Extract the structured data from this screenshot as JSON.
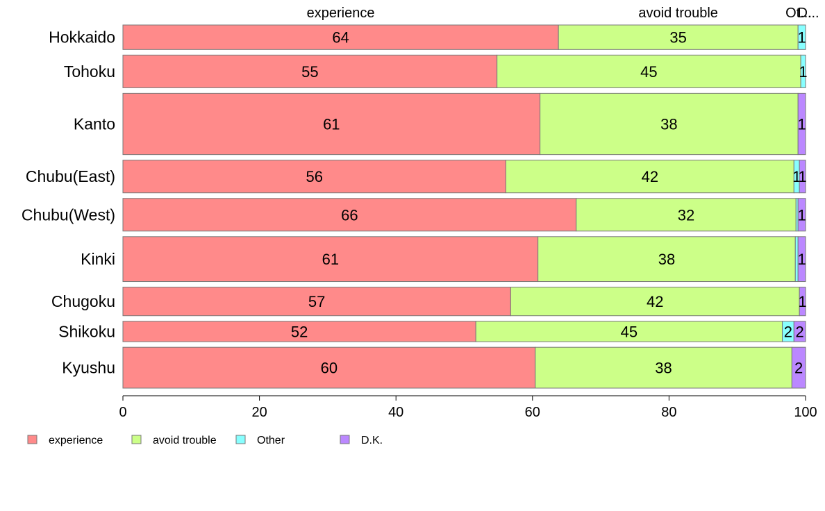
{
  "chart_data": {
    "type": "bar",
    "orientation": "horizontal",
    "stacked": true,
    "percent_stacked": true,
    "categories": [
      "Hokkaido",
      "Tohoku",
      "Kanto",
      "Chubu(East)",
      "Chubu(West)",
      "Kinki",
      "Chugoku",
      "Shikoku",
      "Kyushu"
    ],
    "series": [
      {
        "name": "experience",
        "color": "#ff8a8a",
        "values": [
          63.8,
          54.8,
          61.1,
          56.1,
          66.4,
          60.8,
          56.8,
          51.7,
          60.4
        ]
      },
      {
        "name": "avoid trouble",
        "color": "#ccff88",
        "values": [
          35.1,
          44.5,
          37.8,
          42.2,
          32.2,
          37.7,
          42.3,
          44.9,
          37.6
        ]
      },
      {
        "name": "Other",
        "color": "#88ffff",
        "values": [
          1.1,
          0.7,
          0.0,
          0.8,
          0.3,
          0.4,
          0.0,
          1.7,
          0.0
        ]
      },
      {
        "name": "D.K.",
        "color": "#bb88ff",
        "values": [
          0.0,
          0.0,
          1.1,
          0.9,
          1.1,
          1.1,
          0.9,
          1.7,
          2.0
        ]
      }
    ],
    "labels": [
      [
        "64",
        "35",
        "1",
        ""
      ],
      [
        "55",
        "45",
        "1",
        ""
      ],
      [
        "61",
        "38",
        "",
        "1"
      ],
      [
        "56",
        "42",
        "1",
        "1"
      ],
      [
        "66",
        "32",
        "",
        "1"
      ],
      [
        "61",
        "38",
        "",
        "1"
      ],
      [
        "57",
        "42",
        "",
        "1"
      ],
      [
        "52",
        "45",
        "2",
        "2"
      ],
      [
        "60",
        "38",
        "",
        "2"
      ]
    ],
    "bar_weights": [
      6,
      8,
      15,
      8,
      8,
      11,
      7,
      5,
      10
    ],
    "top_labels": [
      "experience",
      "avoid trouble",
      "Ot...",
      "D..."
    ],
    "xlim": [
      0,
      100
    ],
    "xticks": [
      "0",
      "20",
      "40",
      "60",
      "80",
      "100"
    ],
    "grid": false,
    "legend_position": "bottom-left"
  }
}
